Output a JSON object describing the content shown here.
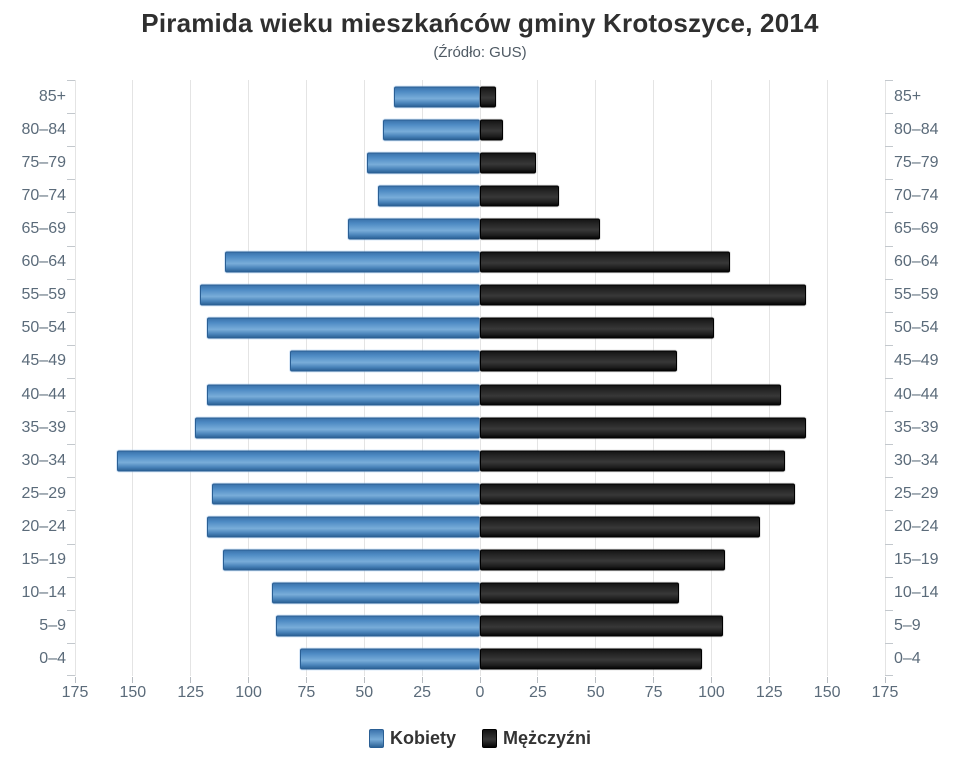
{
  "title": "Piramida wieku mieszkańców gminy Krotoszyce, 2014",
  "subtitle": "(Źródło: GUS)",
  "colors": {
    "women_bar": "#4e8bc4",
    "men_bar": "#1c1c1c",
    "axis_label": "#5b6b7a",
    "gridline": "#e4e4e4",
    "title_text": "#2f2f2f"
  },
  "legend": {
    "women": "Kobiety",
    "men": "Mężczyźni",
    "position": "bottom"
  },
  "chart_data": {
    "type": "bar",
    "subtype": "population-pyramid",
    "title": "Piramida wieku mieszkańców gminy Krotoszyce, 2014",
    "subtitle": "(Źródło: GUS)",
    "categories": [
      "85+",
      "80–84",
      "75–79",
      "70–74",
      "65–69",
      "60–64",
      "55–59",
      "50–54",
      "45–49",
      "40–44",
      "35–39",
      "30–34",
      "25–29",
      "20–24",
      "15–19",
      "10–14",
      "5–9",
      "0–4"
    ],
    "series": [
      {
        "name": "Kobiety",
        "side": "left",
        "color": "#4e8bc4",
        "values": [
          37,
          42,
          49,
          44,
          57,
          110,
          121,
          118,
          82,
          118,
          123,
          157,
          116,
          118,
          111,
          90,
          88,
          78
        ]
      },
      {
        "name": "Mężczyźni",
        "side": "right",
        "color": "#1c1c1c",
        "values": [
          7,
          10,
          24,
          34,
          52,
          108,
          141,
          101,
          85,
          130,
          141,
          132,
          136,
          121,
          106,
          86,
          105,
          96
        ]
      }
    ],
    "xlim": [
      0,
      175
    ],
    "x_tick_step": 25,
    "x_ticks": [
      175,
      150,
      125,
      100,
      75,
      50,
      25,
      0,
      25,
      50,
      75,
      100,
      125,
      150,
      175
    ],
    "grid": true,
    "age_labels_both_sides": true,
    "legend_position": "bottom"
  }
}
